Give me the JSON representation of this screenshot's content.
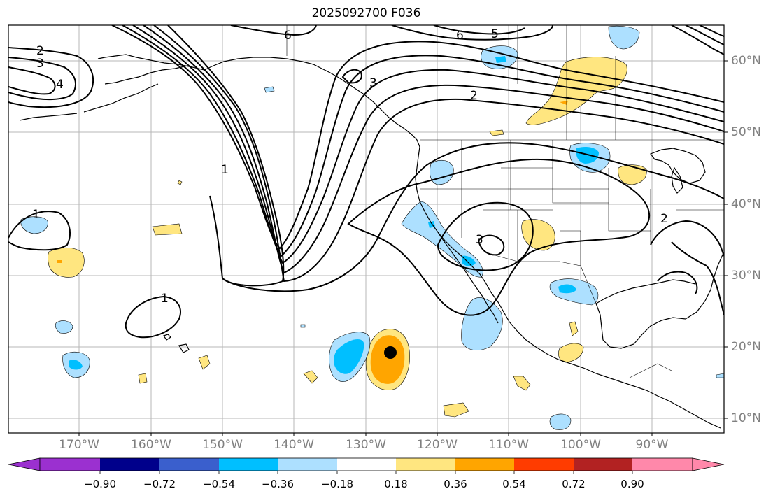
{
  "title": "2025092700 F036",
  "map": {
    "lat_labels": [
      "60°N",
      "50°N",
      "40°N",
      "30°N",
      "20°N",
      "10°N"
    ],
    "lon_labels": [
      "170°W",
      "160°W",
      "150°W",
      "140°W",
      "130°W",
      "120°W",
      "110°W",
      "100°W",
      "90°W"
    ],
    "contour_labels": [
      "2",
      "3",
      "4",
      "1",
      "6",
      "5",
      "6",
      "2",
      "3",
      "1",
      "3",
      "2",
      "1"
    ],
    "storm_marker": {
      "lat": 19.2,
      "lon": -126.5
    }
  },
  "colorbar": {
    "ticks": [
      "−0.90",
      "−0.72",
      "−0.54",
      "−0.36",
      "−0.18",
      "0.18",
      "0.36",
      "0.54",
      "0.72",
      "0.90"
    ],
    "colors": [
      "#9b30d0",
      "#00008b",
      "#3a5fcd",
      "#00bfff",
      "#ade0ff",
      "#ffffff",
      "#ffe680",
      "#ffa500",
      "#ff3c00",
      "#b22222",
      "#ff88aa"
    ]
  }
}
